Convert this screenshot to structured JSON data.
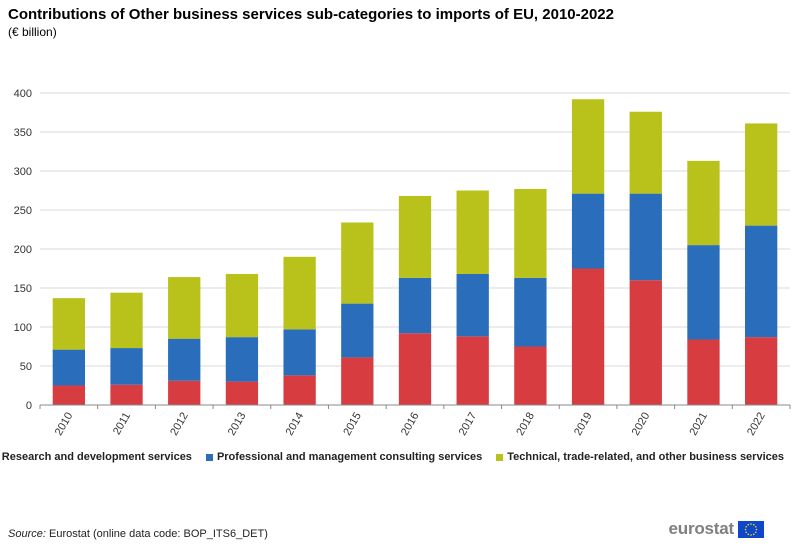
{
  "title": "Contributions of Other business services sub-categories to imports of EU, 2010-2022",
  "subtitle": "(€ billion)",
  "source_label": "Source:",
  "source_text": "Eurostat (online data code: BOP_ITS6_DET)",
  "logo_text": "eurostat",
  "colors": {
    "research": "#d73c41",
    "professional": "#2a6ebb",
    "technical": "#b9c21a",
    "grid": "#d9d9d9",
    "axis": "#888888"
  },
  "chart_data": {
    "type": "bar",
    "stacked": true,
    "title": "Contributions of Other business services sub-categories to imports of EU, 2010-2022",
    "ylabel": "€ billion",
    "ylim": [
      0,
      400
    ],
    "yticks": [
      0,
      50,
      100,
      150,
      200,
      250,
      300,
      350,
      400
    ],
    "grid": true,
    "legend_position": "bottom-right",
    "categories": [
      "2010",
      "2011",
      "2012",
      "2013",
      "2014",
      "2015",
      "2016",
      "2017",
      "2018",
      "2019",
      "2020",
      "2021",
      "2022"
    ],
    "series": [
      {
        "name": "Research and development services",
        "color_key": "research",
        "values": [
          25,
          26,
          31,
          30,
          38,
          61,
          92,
          88,
          75,
          175,
          160,
          84,
          87
        ]
      },
      {
        "name": "Professional and management consulting services",
        "color_key": "professional",
        "values": [
          46,
          47,
          54,
          57,
          59,
          69,
          71,
          80,
          88,
          96,
          111,
          121,
          143
        ]
      },
      {
        "name": "Technical, trade-related, and other business services",
        "color_key": "technical",
        "values": [
          66,
          71,
          79,
          81,
          93,
          104,
          105,
          107,
          114,
          121,
          105,
          108,
          131
        ]
      }
    ]
  }
}
